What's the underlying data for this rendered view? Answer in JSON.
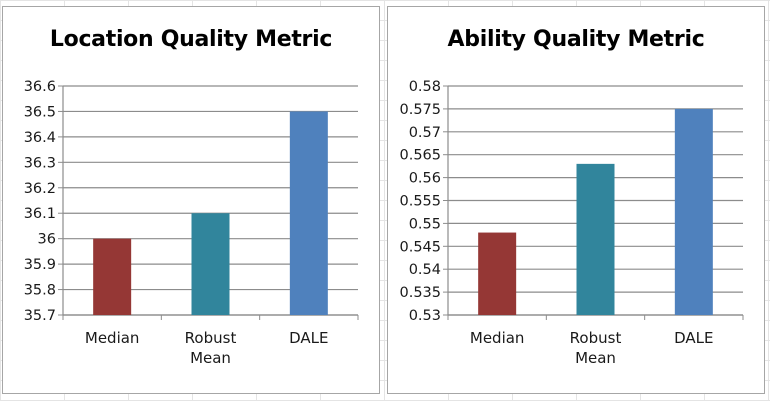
{
  "chart_data": [
    {
      "type": "bar",
      "title": "Location Quality Metric",
      "categories": [
        "Median",
        "Robust Mean",
        "DALE"
      ],
      "category_lines": [
        [
          "Median"
        ],
        [
          "Robust",
          "Mean"
        ],
        [
          "DALE"
        ]
      ],
      "values": [
        36.0,
        36.1,
        36.5
      ],
      "colors": [
        "#953735",
        "#31859c",
        "#4f81bd"
      ],
      "ylim": [
        35.7,
        36.6
      ],
      "yticks": [
        "35.7",
        "35.8",
        "35.9",
        "36",
        "36.1",
        "36.2",
        "36.3",
        "36.4",
        "36.5",
        "36.6"
      ],
      "xlabel": "",
      "ylabel": "",
      "grid": true,
      "legend": "none"
    },
    {
      "type": "bar",
      "title": "Ability Quality Metric",
      "categories": [
        "Median",
        "Robust Mean",
        "DALE"
      ],
      "category_lines": [
        [
          "Median"
        ],
        [
          "Robust",
          "Mean"
        ],
        [
          "DALE"
        ]
      ],
      "values": [
        0.548,
        0.563,
        0.575
      ],
      "colors": [
        "#953735",
        "#31859c",
        "#4f81bd"
      ],
      "ylim": [
        0.53,
        0.58
      ],
      "yticks": [
        "0.53",
        "0.535",
        "0.54",
        "0.545",
        "0.55",
        "0.555",
        "0.56",
        "0.565",
        "0.57",
        "0.575",
        "0.58"
      ],
      "xlabel": "",
      "ylabel": "",
      "grid": true,
      "legend": "none"
    }
  ]
}
